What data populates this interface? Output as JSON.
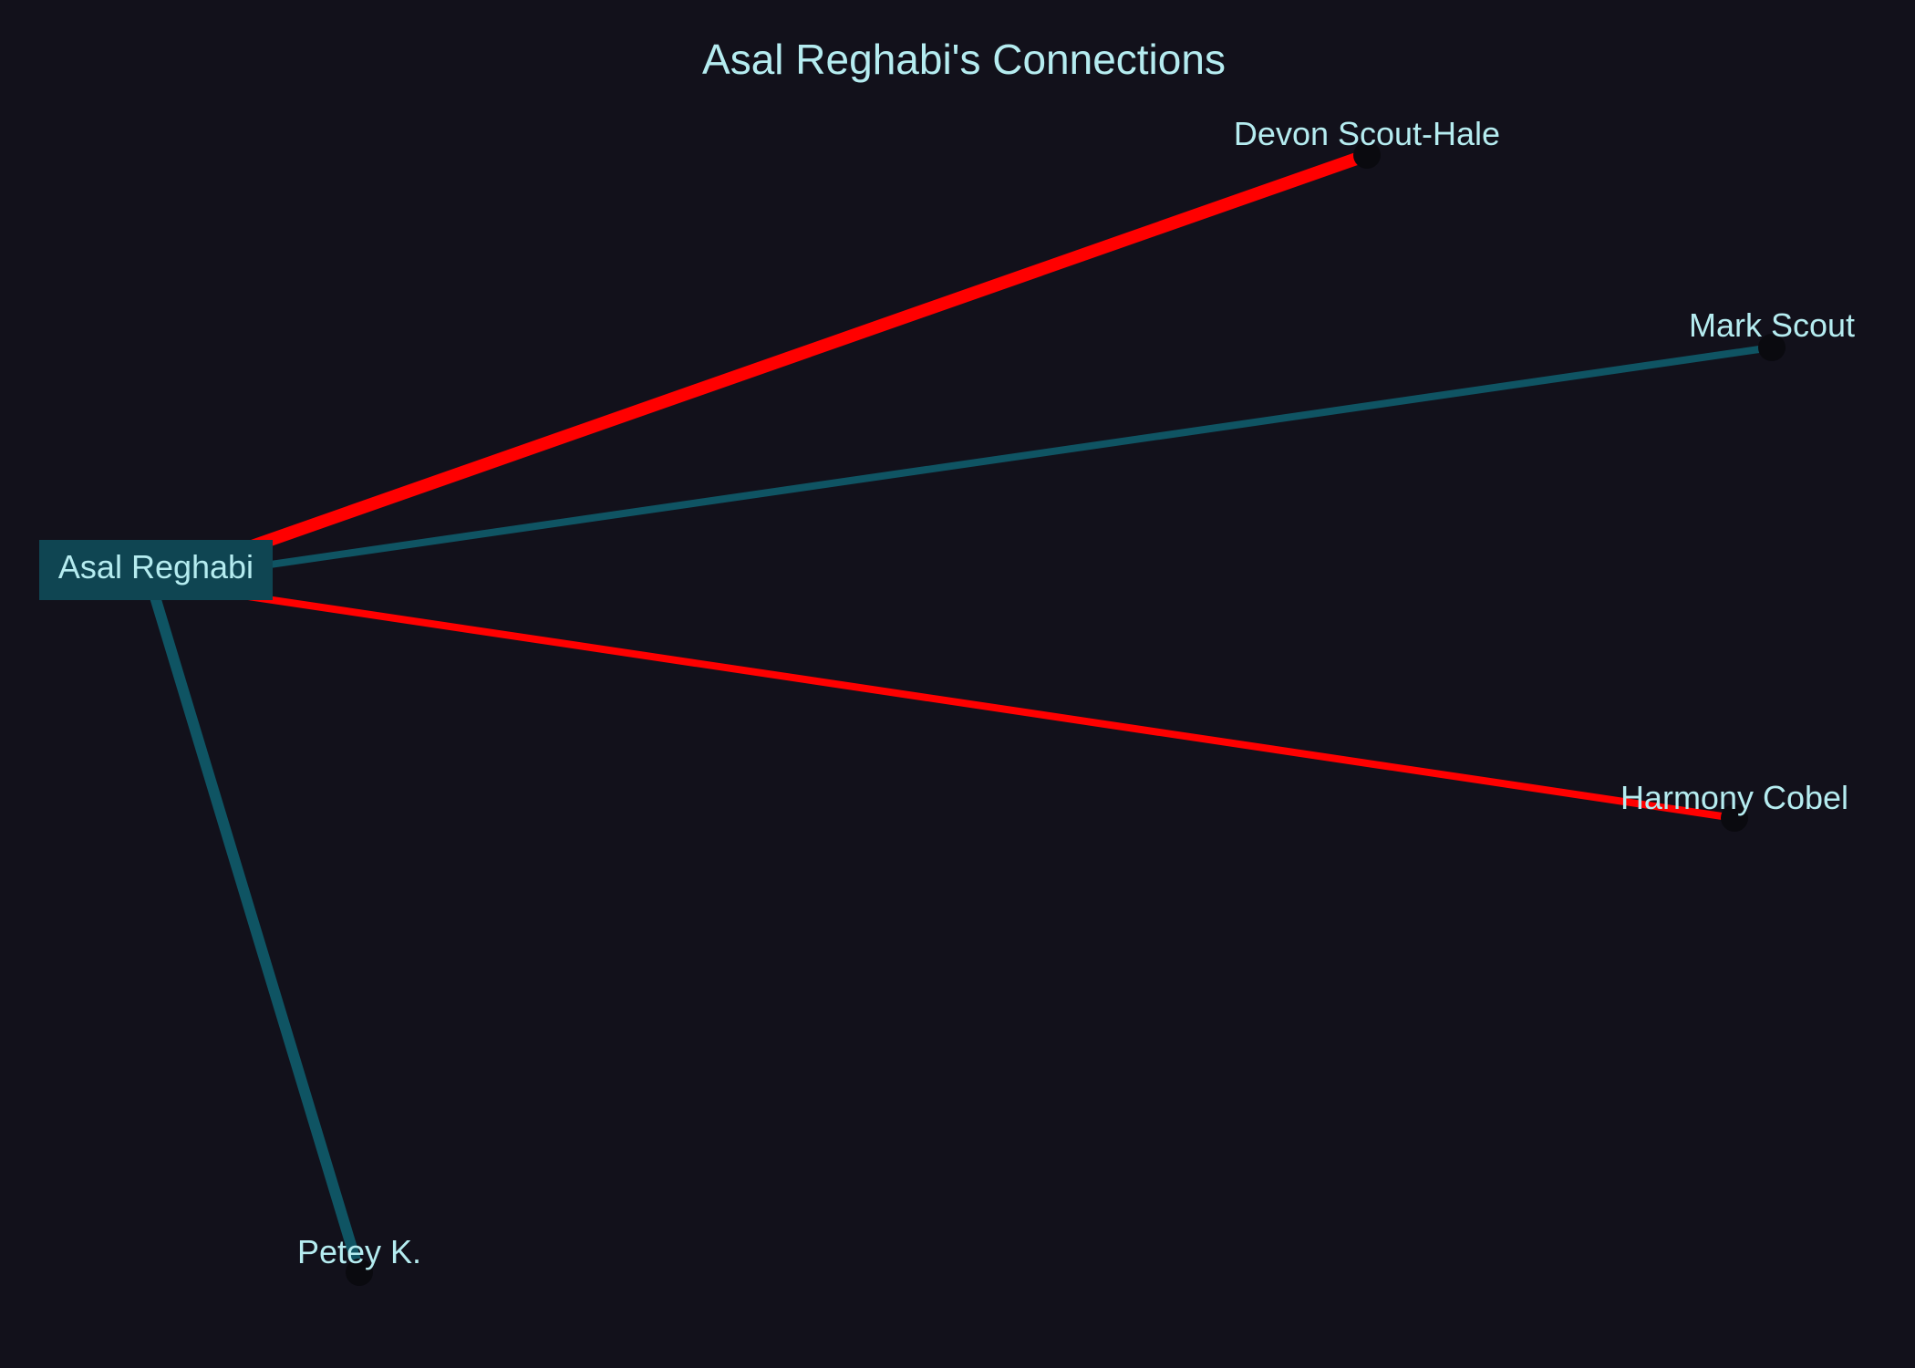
{
  "title": "Asal Reghabi's Connections",
  "colors": {
    "background": "#12111b",
    "text": "#b5ecf0",
    "teal": "#0f5463",
    "red": "#ff0000",
    "center_box": "#0f4552",
    "node_dot": "#0a0a0f"
  },
  "center": {
    "id": "asal",
    "label": "Asal Reghabi"
  },
  "nodes": [
    {
      "id": "devon",
      "label": "Devon Scout-Hale"
    },
    {
      "id": "mark",
      "label": "Mark Scout"
    },
    {
      "id": "harmony",
      "label": "Harmony Cobel"
    },
    {
      "id": "petey",
      "label": "Petey K."
    }
  ],
  "edges": [
    {
      "source": "asal",
      "target": "devon",
      "color": "red"
    },
    {
      "source": "asal",
      "target": "mark",
      "color": "teal"
    },
    {
      "source": "asal",
      "target": "harmony",
      "color": "red"
    },
    {
      "source": "asal",
      "target": "petey",
      "color": "teal"
    }
  ]
}
